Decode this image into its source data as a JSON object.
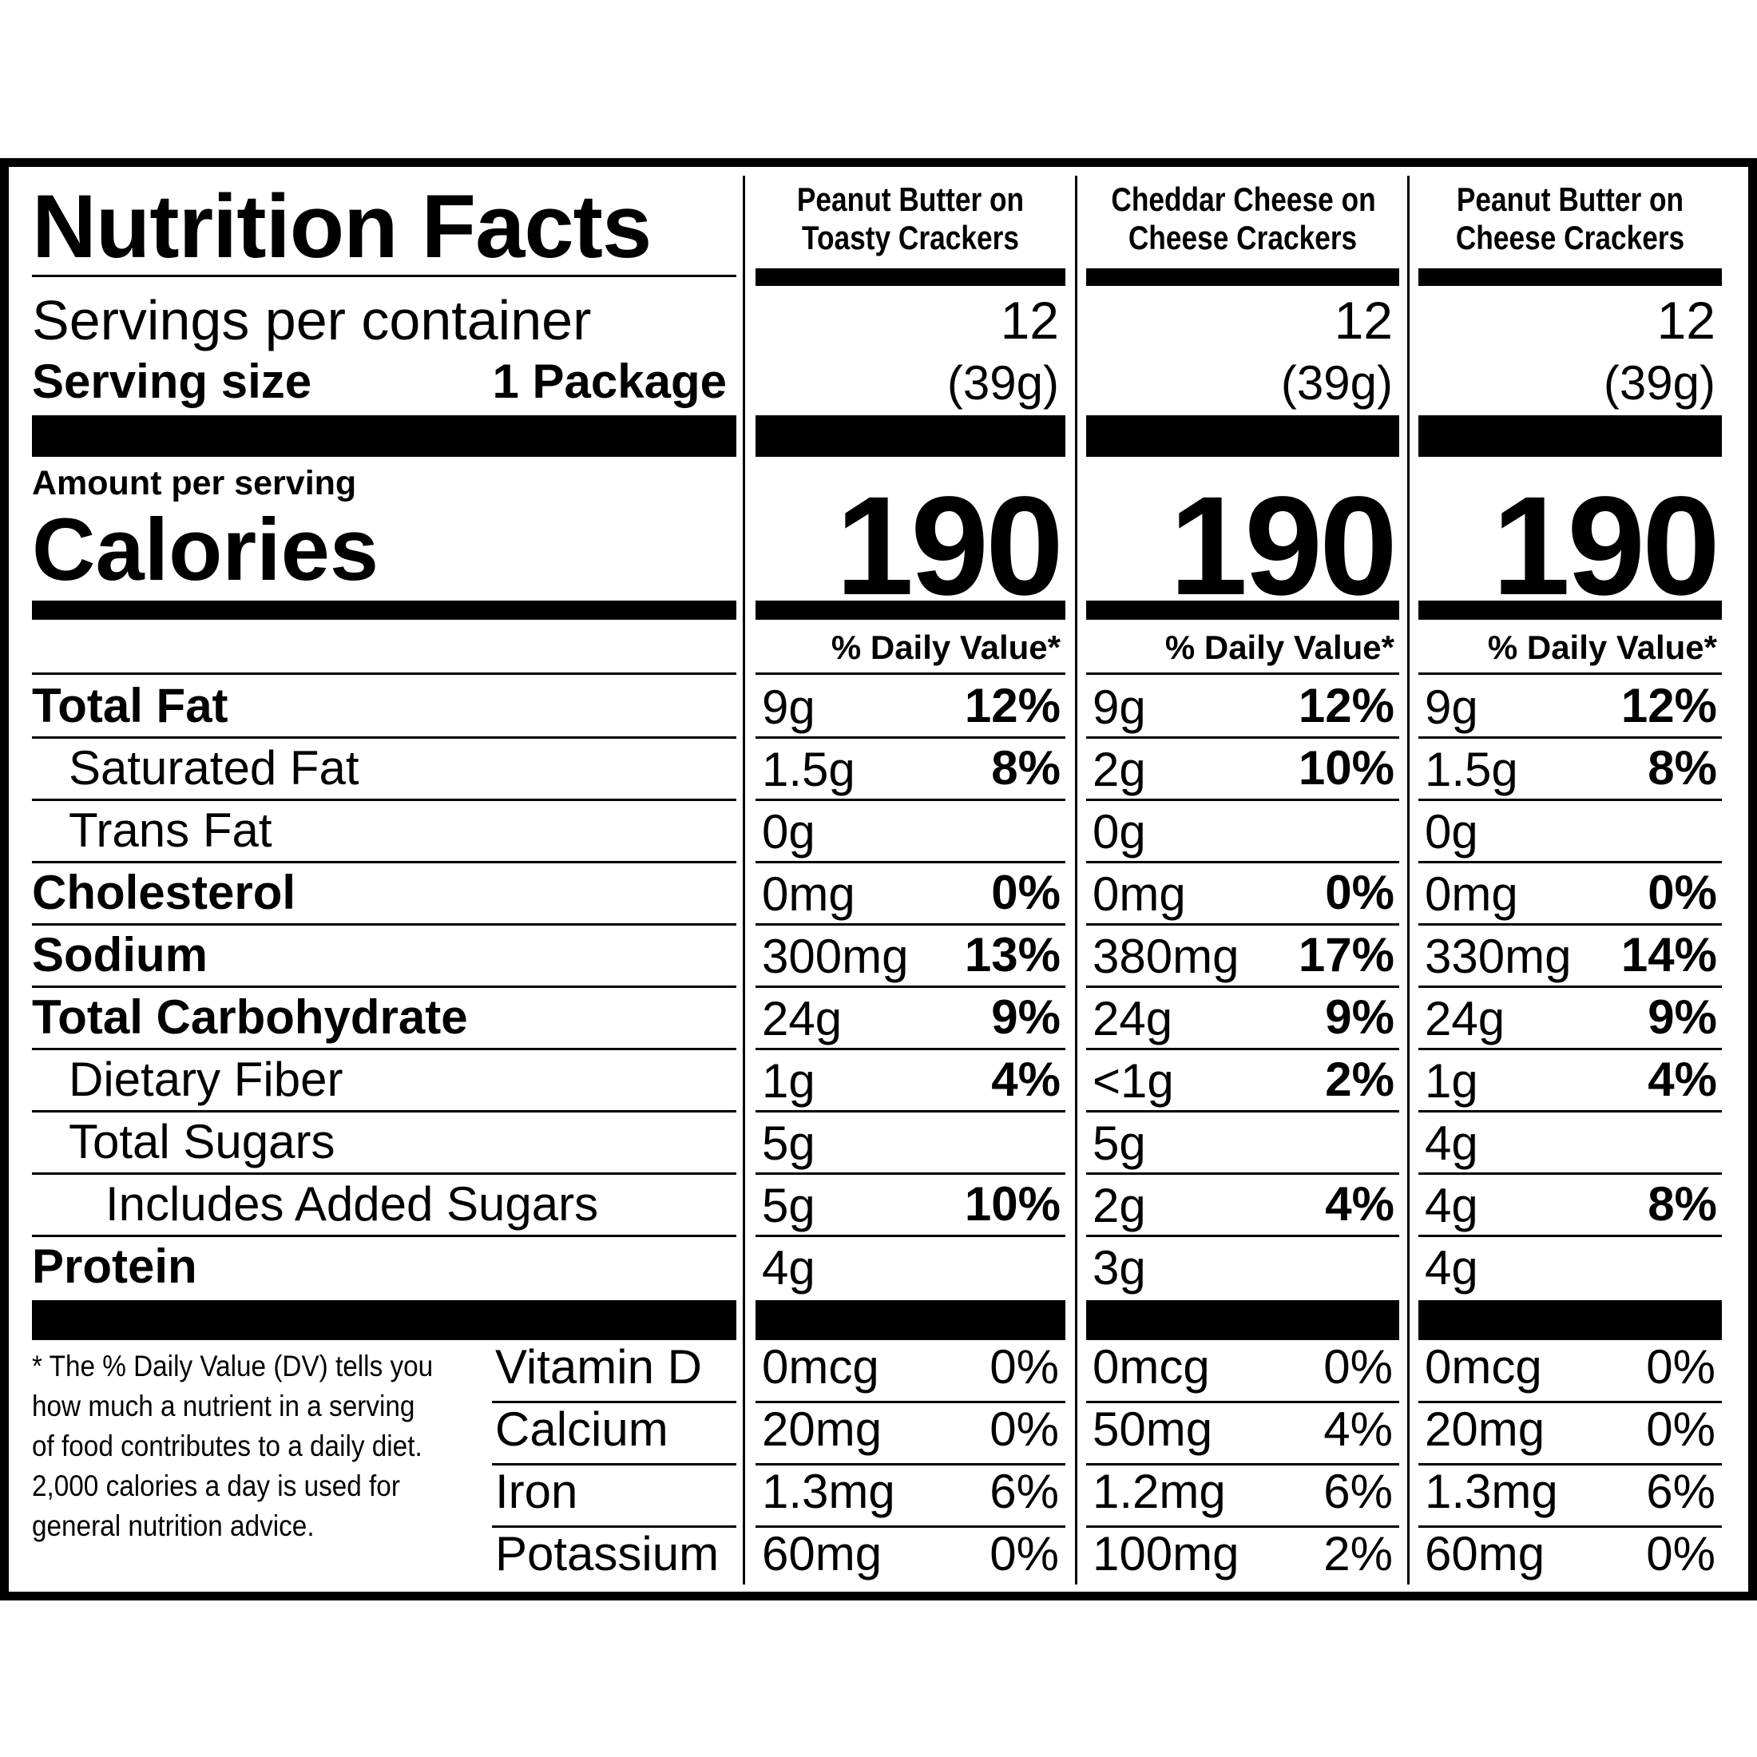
{
  "title": "Nutrition Facts",
  "servings_per_container_label": "Servings per container",
  "serving_size_label": "Serving size",
  "serving_size_value": "1 Package",
  "amount_per_serving_label": "Amount per serving",
  "calories_label": "Calories",
  "daily_value_label": "% Daily Value*",
  "nutrient_labels": {
    "total_fat": "Total Fat",
    "saturated_fat": "Saturated Fat",
    "trans_fat": "Trans Fat",
    "cholesterol": "Cholesterol",
    "sodium": "Sodium",
    "total_carbohydrate": "Total Carbohydrate",
    "dietary_fiber": "Dietary Fiber",
    "total_sugars": "Total Sugars",
    "added_sugars": "Includes Added Sugars",
    "protein": "Protein"
  },
  "vitamin_labels": {
    "vitamin_d": "Vitamin D",
    "calcium": "Calcium",
    "iron": "Iron",
    "potassium": "Potassium"
  },
  "footnote": "* The % Daily Value (DV) tells you how much a nutrient in a serving of food contributes to a daily diet. 2,000 calories a day is used for general nutrition advice.",
  "products": [
    {
      "name_line1": "Peanut Butter on",
      "name_line2": "Toasty Crackers",
      "servings": "12",
      "serving_weight": "(39g)",
      "calories": "190",
      "total_fat": {
        "amount": "9g",
        "dv": "12%"
      },
      "saturated_fat": {
        "amount": "1.5g",
        "dv": "8%"
      },
      "trans_fat": {
        "amount": "0g",
        "dv": ""
      },
      "cholesterol": {
        "amount": "0mg",
        "dv": "0%"
      },
      "sodium": {
        "amount": "300mg",
        "dv": "13%"
      },
      "total_carbohydrate": {
        "amount": "24g",
        "dv": "9%"
      },
      "dietary_fiber": {
        "amount": "1g",
        "dv": "4%"
      },
      "total_sugars": {
        "amount": "5g",
        "dv": ""
      },
      "added_sugars": {
        "amount": "5g",
        "dv": "10%"
      },
      "protein": {
        "amount": "4g",
        "dv": ""
      },
      "vitamin_d": {
        "amount": "0mcg",
        "dv": "0%"
      },
      "calcium": {
        "amount": "20mg",
        "dv": "0%"
      },
      "iron": {
        "amount": "1.3mg",
        "dv": "6%"
      },
      "potassium": {
        "amount": "60mg",
        "dv": "0%"
      }
    },
    {
      "name_line1": "Cheddar Cheese on",
      "name_line2": "Cheese Crackers",
      "servings": "12",
      "serving_weight": "(39g)",
      "calories": "190",
      "total_fat": {
        "amount": "9g",
        "dv": "12%"
      },
      "saturated_fat": {
        "amount": "2g",
        "dv": "10%"
      },
      "trans_fat": {
        "amount": "0g",
        "dv": ""
      },
      "cholesterol": {
        "amount": "0mg",
        "dv": "0%"
      },
      "sodium": {
        "amount": "380mg",
        "dv": "17%"
      },
      "total_carbohydrate": {
        "amount": "24g",
        "dv": "9%"
      },
      "dietary_fiber": {
        "amount": "<1g",
        "dv": "2%"
      },
      "total_sugars": {
        "amount": "5g",
        "dv": ""
      },
      "added_sugars": {
        "amount": "2g",
        "dv": "4%"
      },
      "protein": {
        "amount": "3g",
        "dv": ""
      },
      "vitamin_d": {
        "amount": "0mcg",
        "dv": "0%"
      },
      "calcium": {
        "amount": "50mg",
        "dv": "4%"
      },
      "iron": {
        "amount": "1.2mg",
        "dv": "6%"
      },
      "potassium": {
        "amount": "100mg",
        "dv": "2%"
      }
    },
    {
      "name_line1": "Peanut Butter on",
      "name_line2": "Cheese Crackers",
      "servings": "12",
      "serving_weight": "(39g)",
      "calories": "190",
      "total_fat": {
        "amount": "9g",
        "dv": "12%"
      },
      "saturated_fat": {
        "amount": "1.5g",
        "dv": "8%"
      },
      "trans_fat": {
        "amount": "0g",
        "dv": ""
      },
      "cholesterol": {
        "amount": "0mg",
        "dv": "0%"
      },
      "sodium": {
        "amount": "330mg",
        "dv": "14%"
      },
      "total_carbohydrate": {
        "amount": "24g",
        "dv": "9%"
      },
      "dietary_fiber": {
        "amount": "1g",
        "dv": "4%"
      },
      "total_sugars": {
        "amount": "4g",
        "dv": ""
      },
      "added_sugars": {
        "amount": "4g",
        "dv": "8%"
      },
      "protein": {
        "amount": "4g",
        "dv": ""
      },
      "vitamin_d": {
        "amount": "0mcg",
        "dv": "0%"
      },
      "calcium": {
        "amount": "20mg",
        "dv": "0%"
      },
      "iron": {
        "amount": "1.3mg",
        "dv": "6%"
      },
      "potassium": {
        "amount": "60mg",
        "dv": "0%"
      }
    }
  ]
}
